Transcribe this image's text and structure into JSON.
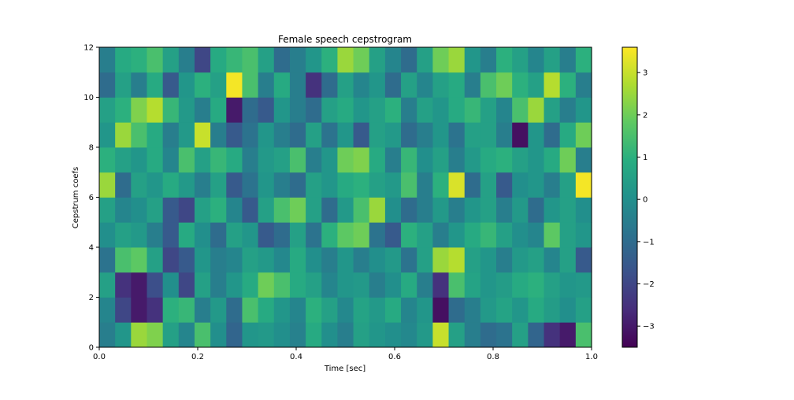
{
  "chart_data": {
    "type": "heatmap",
    "title": "Female speech cepstrogram",
    "xlabel": "Time [sec]",
    "ylabel": "Cepstrum coefs",
    "xlim": [
      0.0,
      1.0
    ],
    "ylim": [
      0,
      12
    ],
    "x_ticks": [
      "0.0",
      "0.2",
      "0.4",
      "0.6",
      "0.8",
      "1.0"
    ],
    "y_ticks": [
      "0",
      "2",
      "4",
      "6",
      "8",
      "10",
      "12"
    ],
    "colormap": "viridis",
    "colorbar": {
      "range": [
        -3.5,
        3.6
      ],
      "ticks": [
        "−3",
        "−2",
        "−1",
        "0",
        "1",
        "2",
        "3"
      ],
      "tick_values": [
        -3,
        -2,
        -1,
        0,
        1,
        2,
        3
      ]
    },
    "n_coefs": 12,
    "segments": [
      [
        -0.5,
        0.2,
        2.5,
        2.2,
        0.5,
        -0.3,
        1.5,
        0.0,
        -1.2,
        0.2,
        0.3,
        0.0,
        -0.4,
        0.8,
        0.0,
        -0.5,
        0.5,
        0.2,
        0.0,
        -0.2,
        0.3,
        3.0,
        0.5,
        -0.5,
        -1.0,
        -0.8,
        0.5,
        -1.2,
        -2.5,
        -3.0,
        1.5
      ],
      [
        -0.3,
        -2.0,
        -3.0,
        -2.5,
        1.0,
        1.2,
        -0.5,
        0.3,
        -1.0,
        1.5,
        0.8,
        0.2,
        -0.3,
        1.0,
        0.5,
        -0.2,
        0.6,
        0.3,
        0.8,
        -0.3,
        0.2,
        -3.2,
        -1.0,
        -0.5,
        0.3,
        0.6,
        0.2,
        0.8,
        0.4,
        0.0,
        0.5
      ],
      [
        0.5,
        -2.5,
        -3.0,
        -1.8,
        0.0,
        -2.0,
        0.5,
        -0.5,
        0.2,
        0.8,
        2.0,
        1.5,
        0.8,
        0.5,
        -0.3,
        0.2,
        0.3,
        -0.5,
        0.0,
        0.8,
        -0.5,
        -2.5,
        1.5,
        0.6,
        0.2,
        0.4,
        0.8,
        1.0,
        0.5,
        0.2,
        0.3
      ],
      [
        -0.8,
        1.5,
        1.8,
        0.5,
        -2.0,
        -1.5,
        0.2,
        -0.5,
        -0.3,
        0.5,
        0.3,
        -0.2,
        0.8,
        0.0,
        -0.5,
        0.2,
        -0.5,
        0.0,
        0.3,
        -0.8,
        0.5,
        2.5,
        2.8,
        0.5,
        0.2,
        -0.5,
        0.3,
        0.5,
        -0.3,
        0.5,
        -1.5
      ],
      [
        0.0,
        0.5,
        0.3,
        -0.5,
        -1.5,
        0.8,
        0.0,
        -1.0,
        0.5,
        0.2,
        -1.5,
        -1.0,
        0.5,
        -0.8,
        1.0,
        1.8,
        2.0,
        -0.8,
        -1.5,
        1.0,
        0.5,
        -0.5,
        0.2,
        0.8,
        1.2,
        0.5,
        0.0,
        -0.3,
        1.8,
        0.5,
        0.2
      ],
      [
        0.5,
        -0.3,
        0.0,
        0.5,
        -1.5,
        -2.0,
        0.5,
        1.0,
        -0.3,
        -1.5,
        0.5,
        1.5,
        2.0,
        0.5,
        -1.0,
        0.3,
        1.5,
        2.5,
        0.0,
        -1.0,
        -0.5,
        0.3,
        -0.5,
        0.2,
        0.5,
        -0.5,
        0.3,
        -1.0,
        0.2,
        0.5,
        0.0
      ],
      [
        2.5,
        -1.0,
        0.5,
        0.2,
        0.8,
        0.3,
        -0.5,
        0.5,
        -1.5,
        -0.8,
        0.2,
        -0.5,
        -1.0,
        0.5,
        0.2,
        0.8,
        1.0,
        0.5,
        0.3,
        1.5,
        -0.5,
        1.0,
        3.2,
        -1.0,
        0.5,
        -1.5,
        0.0,
        0.2,
        -0.5,
        0.5,
        3.5
      ],
      [
        1.0,
        0.5,
        0.2,
        0.8,
        -0.3,
        1.5,
        0.5,
        1.2,
        0.8,
        -0.5,
        0.3,
        0.5,
        1.5,
        -0.5,
        0.2,
        2.0,
        2.2,
        0.8,
        -0.5,
        1.2,
        0.0,
        0.5,
        -0.5,
        0.3,
        0.8,
        1.0,
        0.5,
        0.2,
        0.8,
        2.0,
        -0.5
      ],
      [
        0.2,
        2.5,
        1.5,
        0.8,
        -0.5,
        0.3,
        3.0,
        -0.5,
        -1.5,
        -0.8,
        0.2,
        -0.5,
        -1.0,
        0.5,
        -0.8,
        0.2,
        -1.5,
        0.5,
        0.3,
        -1.0,
        -0.5,
        0.2,
        -0.8,
        0.5,
        0.5,
        -0.5,
        -3.2,
        0.2,
        -1.0,
        0.8,
        2.0
      ],
      [
        0.5,
        1.0,
        2.2,
        2.8,
        1.2,
        0.3,
        -0.5,
        0.8,
        -3.0,
        -1.0,
        -1.5,
        0.2,
        -0.5,
        -1.0,
        0.5,
        0.8,
        0.2,
        0.5,
        1.0,
        -0.5,
        0.5,
        0.2,
        0.8,
        1.2,
        0.5,
        -0.3,
        1.5,
        2.5,
        0.5,
        -0.5,
        0.2
      ],
      [
        -1.0,
        0.5,
        -0.5,
        0.8,
        -1.5,
        0.2,
        1.0,
        0.5,
        3.5,
        1.5,
        -0.5,
        0.8,
        -0.5,
        -2.5,
        -1.0,
        0.5,
        -0.3,
        0.2,
        -1.0,
        0.5,
        -0.3,
        0.5,
        0.8,
        -0.5,
        1.5,
        2.0,
        1.0,
        0.5,
        2.8,
        1.0,
        -0.5
      ],
      [
        -0.5,
        0.8,
        1.0,
        1.5,
        0.5,
        -0.5,
        -2.0,
        0.8,
        1.2,
        1.5,
        0.5,
        -1.0,
        -0.5,
        0.2,
        1.0,
        2.5,
        2.0,
        0.5,
        -0.3,
        -1.0,
        0.5,
        2.0,
        2.5,
        0.2,
        -0.5,
        1.0,
        0.5,
        -0.3,
        0.5,
        -0.5,
        1.0
      ]
    ]
  }
}
